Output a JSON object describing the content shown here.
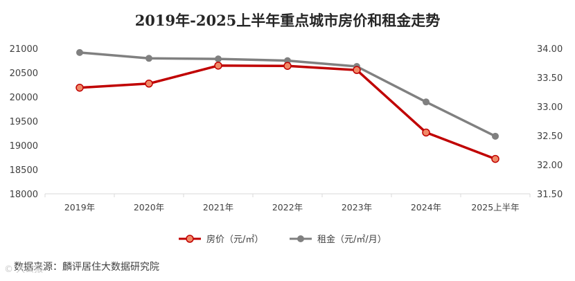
{
  "chart_data": {
    "type": "line",
    "title": "2019年-2025上半年重点城市房价和租金走势",
    "categories": [
      "2019年",
      "2020年",
      "2021年",
      "2022年",
      "2023年",
      "2024年",
      "2025上半年"
    ],
    "series": [
      {
        "name": "房价（元/㎡）",
        "axis": "left",
        "color": "#c00000",
        "marker_color": "#f08a68",
        "values": [
          20190,
          20275,
          20645,
          20640,
          20555,
          19265,
          18720
        ]
      },
      {
        "name": "租金（元/㎡/月）",
        "axis": "right",
        "color": "#808080",
        "values": [
          33.93,
          33.83,
          33.82,
          33.79,
          33.69,
          33.08,
          32.49
        ]
      }
    ],
    "y_left": {
      "min": 18000,
      "max": 21000,
      "step": 500,
      "ticks": [
        "18000",
        "18500",
        "19000",
        "19500",
        "20000",
        "20500",
        "21000"
      ]
    },
    "y_right": {
      "min": 31.5,
      "max": 34.0,
      "step": 0.5,
      "ticks": [
        "31.50",
        "32.00",
        "32.50",
        "33.00",
        "33.50",
        "34.00"
      ]
    },
    "legend_position": "bottom",
    "grid": false
  },
  "source_text": "数据来源：麟评居住大数据研究院",
  "watermark_text": "© 大公报"
}
